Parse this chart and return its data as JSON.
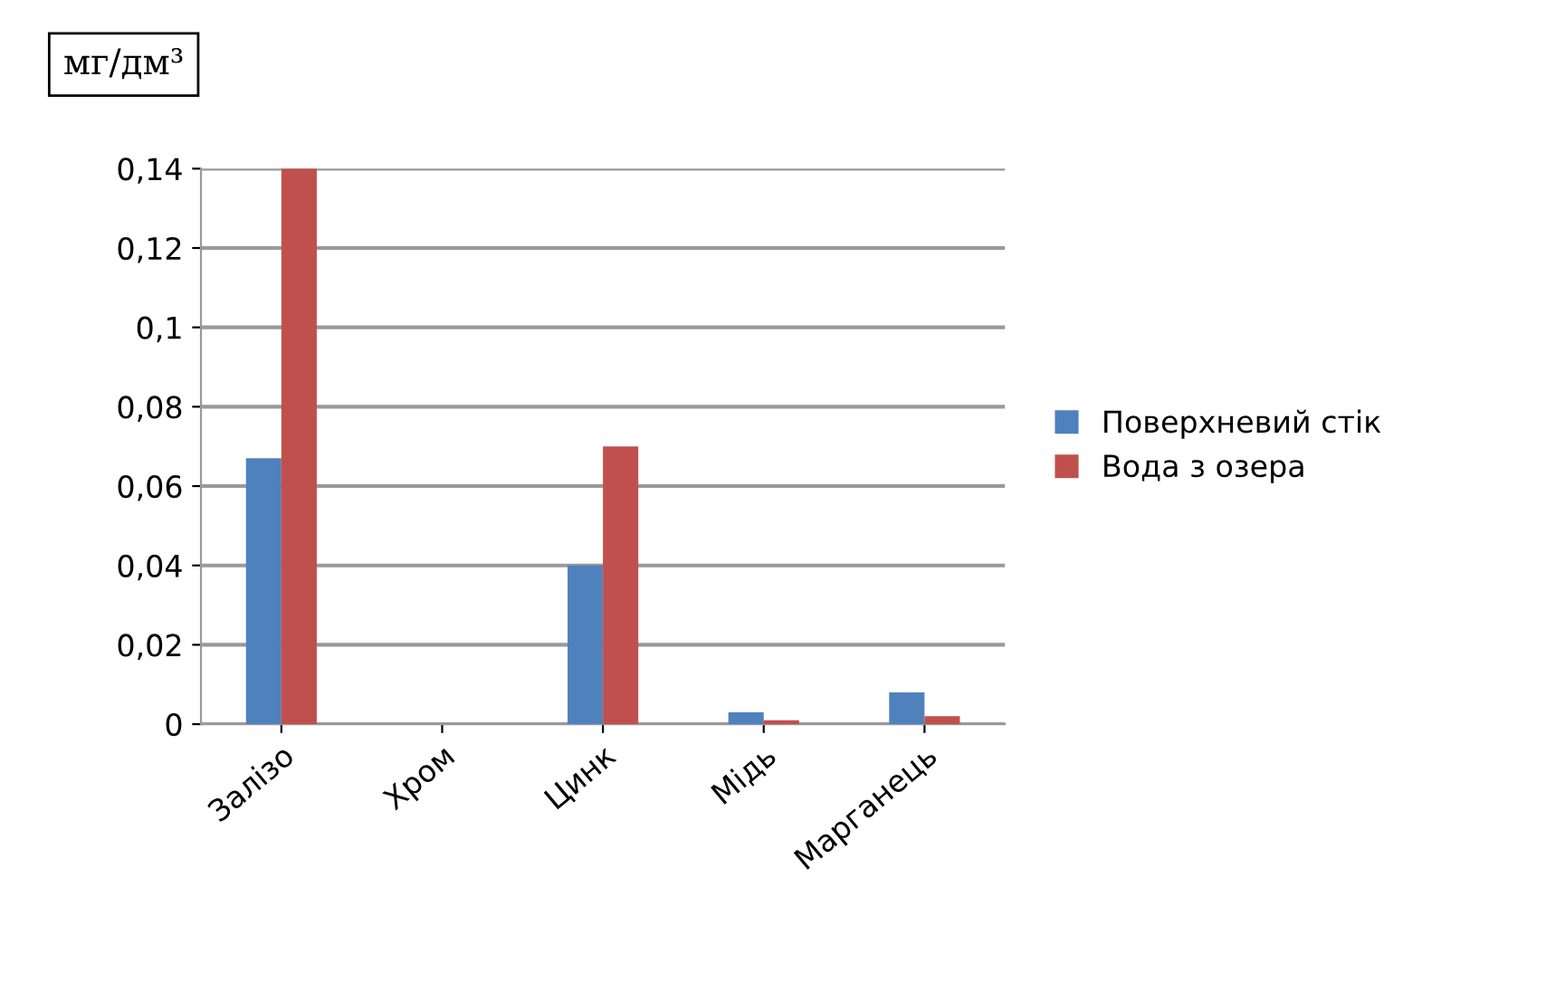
{
  "chart_data": {
    "type": "bar",
    "ylabel": "мг/дм³",
    "categories": [
      "Залізо",
      "Хром",
      "Цинк",
      "Мідь",
      "Марганець"
    ],
    "series": [
      {
        "name": "Поверхневий стік",
        "color": "#4f81bd",
        "values": [
          0.067,
          0,
          0.04,
          0.003,
          0.008
        ]
      },
      {
        "name": "Вода з озера",
        "color": "#c0504d",
        "values": [
          0.14,
          0,
          0.07,
          0.001,
          0.002
        ]
      }
    ],
    "ylim": [
      0,
      0.14
    ],
    "yticks": [
      {
        "value": 0,
        "label": "0"
      },
      {
        "value": 0.02,
        "label": "0,02"
      },
      {
        "value": 0.04,
        "label": "0,04"
      },
      {
        "value": 0.06,
        "label": "0,06"
      },
      {
        "value": 0.08,
        "label": "0,08"
      },
      {
        "value": 0.1,
        "label": "0,1"
      },
      {
        "value": 0.12,
        "label": "0,12"
      },
      {
        "value": 0.14,
        "label": "0,14"
      }
    ],
    "grid": "y",
    "legend": "right"
  }
}
